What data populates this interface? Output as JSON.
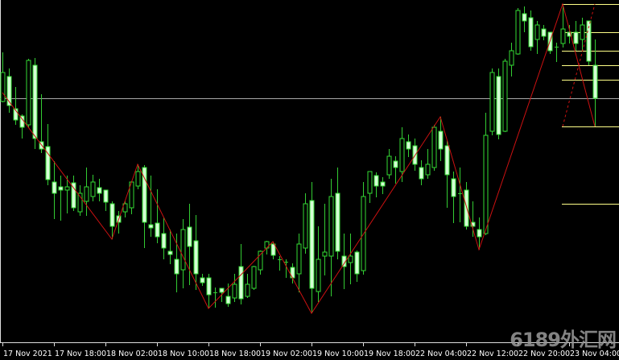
{
  "chart_data": {
    "type": "candlestick",
    "title": "",
    "xlabel": "",
    "ylabel": "",
    "ylim": [
      22,
      447
    ],
    "grid": false,
    "colors": {
      "background": "#000000",
      "bull_outline": "#33dd33",
      "bull_fill": "#000000",
      "bear_outline": "#33dd33",
      "bear_fill": "#d4ffd4",
      "wick": "#33cc33",
      "zigzag": "#cc1111",
      "fib": "#ffff88",
      "hline": "#a8a8a8",
      "axis_text": "#ffffff"
    },
    "x_tick_labels": [
      "17 Nov 2021",
      "17 Nov 18:00",
      "18 Nov 02:00",
      "18 Nov 10:00",
      "18 Nov 18:00",
      "19 Nov 02:00",
      "19 Nov 10:00",
      "19 Nov 18:00",
      "22 Nov 04:00",
      "22 Nov 12:00",
      "22 Nov 20:00",
      "23 Nov 04:00"
    ],
    "x_tick_every_bars": 8,
    "ohlc": [
      [
        321,
        382,
        320,
        357
      ],
      [
        352,
        362,
        307,
        316
      ],
      [
        312,
        339,
        292,
        298
      ],
      [
        303,
        305,
        275,
        289
      ],
      [
        292,
        374,
        289,
        372
      ],
      [
        366,
        375,
        262,
        275
      ],
      [
        271,
        330,
        257,
        262
      ],
      [
        265,
        293,
        217,
        224
      ],
      [
        221,
        247,
        175,
        207
      ],
      [
        215,
        229,
        173,
        211
      ],
      [
        211,
        229,
        182,
        215
      ],
      [
        220,
        229,
        185,
        189
      ],
      [
        184,
        217,
        179,
        207
      ],
      [
        197,
        239,
        179,
        215
      ],
      [
        203,
        230,
        197,
        221
      ],
      [
        214,
        225,
        197,
        207
      ],
      [
        211,
        211,
        185,
        196
      ],
      [
        194,
        197,
        150,
        166
      ],
      [
        179,
        185,
        157,
        171
      ],
      [
        184,
        197,
        177,
        194
      ],
      [
        189,
        222,
        181,
        221
      ],
      [
        216,
        243,
        212,
        234
      ],
      [
        239,
        242,
        139,
        171
      ],
      [
        168,
        229,
        153,
        164
      ],
      [
        170,
        212,
        145,
        153
      ],
      [
        157,
        177,
        125,
        139
      ],
      [
        135,
        162,
        119,
        131
      ],
      [
        125,
        157,
        84,
        107
      ],
      [
        112,
        175,
        89,
        162
      ],
      [
        165,
        194,
        93,
        141
      ],
      [
        148,
        180,
        87,
        107
      ],
      [
        102,
        107,
        92,
        96
      ],
      [
        102,
        107,
        64,
        81
      ],
      [
        84,
        90,
        65,
        84
      ],
      [
        89,
        89,
        72,
        84
      ],
      [
        79,
        95,
        66,
        70
      ],
      [
        77,
        107,
        72,
        94
      ],
      [
        116,
        144,
        69,
        76
      ],
      [
        79,
        107,
        77,
        94
      ],
      [
        89,
        117,
        87,
        116
      ],
      [
        112,
        136,
        106,
        135
      ],
      [
        139,
        148,
        131,
        147
      ],
      [
        144,
        147,
        125,
        130
      ],
      [
        125,
        129,
        111,
        125
      ],
      [
        122,
        125,
        102,
        122
      ],
      [
        115,
        120,
        95,
        102
      ],
      [
        107,
        157,
        84,
        144
      ],
      [
        139,
        207,
        132,
        194
      ],
      [
        198,
        221,
        58,
        89
      ],
      [
        85,
        166,
        72,
        125
      ],
      [
        129,
        194,
        105,
        134
      ],
      [
        129,
        225,
        79,
        203
      ],
      [
        207,
        239,
        125,
        135
      ],
      [
        129,
        157,
        88,
        116
      ],
      [
        121,
        157,
        94,
        129
      ],
      [
        134,
        136,
        97,
        107
      ],
      [
        111,
        221,
        106,
        203
      ],
      [
        207,
        234,
        195,
        234
      ],
      [
        229,
        233,
        202,
        216
      ],
      [
        221,
        227,
        206,
        216
      ],
      [
        230,
        262,
        225,
        253
      ],
      [
        247,
        253,
        219,
        239
      ],
      [
        234,
        289,
        221,
        275
      ],
      [
        271,
        280,
        252,
        262
      ],
      [
        266,
        275,
        235,
        243
      ],
      [
        239,
        248,
        217,
        225
      ],
      [
        230,
        262,
        225,
        243
      ],
      [
        239,
        292,
        235,
        289
      ],
      [
        284,
        302,
        247,
        262
      ],
      [
        266,
        272,
        189,
        230
      ],
      [
        225,
        234,
        170,
        203
      ],
      [
        207,
        239,
        171,
        207
      ],
      [
        211,
        221,
        162,
        166
      ],
      [
        171,
        197,
        153,
        166
      ],
      [
        162,
        177,
        137,
        153
      ],
      [
        157,
        307,
        155,
        279
      ],
      [
        284,
        362,
        279,
        357
      ],
      [
        352,
        362,
        274,
        280
      ],
      [
        284,
        374,
        283,
        371
      ],
      [
        366,
        394,
        352,
        384
      ],
      [
        380,
        437,
        379,
        434
      ],
      [
        430,
        439,
        407,
        421
      ],
      [
        425,
        434,
        384,
        389
      ],
      [
        398,
        421,
        380,
        416
      ],
      [
        411,
        416,
        397,
        402
      ],
      [
        407,
        407,
        380,
        384
      ],
      [
        389,
        394,
        370,
        389
      ],
      [
        393,
        442,
        388,
        411
      ],
      [
        407,
        416,
        393,
        402
      ],
      [
        407,
        421,
        384,
        393
      ],
      [
        398,
        425,
        384,
        416
      ],
      [
        421,
        421,
        366,
        371
      ],
      [
        366,
        398,
        290,
        325
      ]
    ],
    "zigzag": [
      [
        0,
        332
      ],
      [
        17,
        150
      ],
      [
        21,
        243
      ],
      [
        32,
        64
      ],
      [
        42,
        147
      ],
      [
        48,
        58
      ],
      [
        68,
        302
      ],
      [
        74,
        137
      ],
      [
        87,
        442
      ],
      [
        92,
        290
      ]
    ],
    "fib_levels": {
      "start_bar": 87,
      "prices": [
        442,
        407,
        384,
        366,
        348,
        290,
        194
      ]
    },
    "fib_dashed_line": [
      [
        87,
        290
      ],
      [
        92,
        442
      ]
    ],
    "horizontal_line": 325
  },
  "watermark": "6189外汇网"
}
